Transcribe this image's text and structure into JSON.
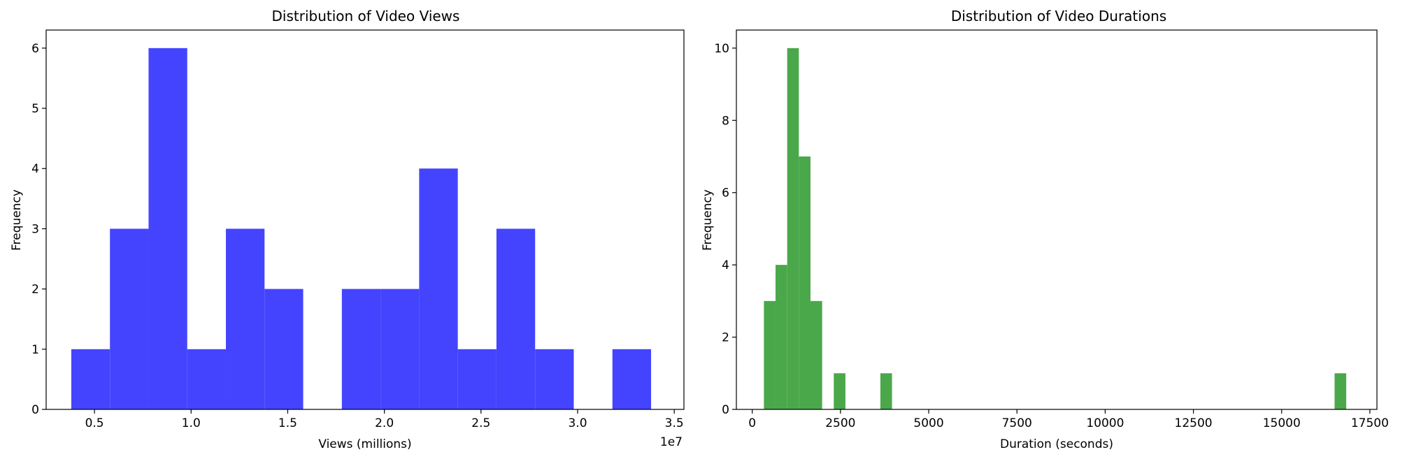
{
  "chart_data": [
    {
      "type": "bar",
      "title": "Distribution of Video Views",
      "xlabel": "Views (millions)",
      "ylabel": "Frequency",
      "x_offset_label": "1e7",
      "color": "#4444ff",
      "xlim": [
        2500000,
        35500000
      ],
      "ylim": [
        0,
        6.3
      ],
      "x_ticks": [
        {
          "value": 5000000,
          "label": "0.5"
        },
        {
          "value": 10000000,
          "label": "1.0"
        },
        {
          "value": 15000000,
          "label": "1.5"
        },
        {
          "value": 20000000,
          "label": "2.0"
        },
        {
          "value": 25000000,
          "label": "2.5"
        },
        {
          "value": 30000000,
          "label": "3.0"
        },
        {
          "value": 35000000,
          "label": "3.5"
        }
      ],
      "y_ticks": [
        {
          "value": 0,
          "label": "0"
        },
        {
          "value": 1,
          "label": "1"
        },
        {
          "value": 2,
          "label": "2"
        },
        {
          "value": 3,
          "label": "3"
        },
        {
          "value": 4,
          "label": "4"
        },
        {
          "value": 5,
          "label": "5"
        },
        {
          "value": 6,
          "label": "6"
        }
      ],
      "bins": [
        3800000,
        5800000,
        7800000,
        9800000,
        11800000,
        13800000,
        15800000,
        17800000,
        19800000,
        21800000,
        23800000,
        25800000,
        27800000,
        29800000,
        31800000,
        33800000
      ],
      "counts": [
        1,
        3,
        6,
        1,
        3,
        2,
        0,
        2,
        2,
        4,
        1,
        3,
        1,
        0,
        1
      ],
      "grid": false
    },
    {
      "type": "bar",
      "title": "Distribution of Video Durations",
      "xlabel": "Duration (seconds)",
      "ylabel": "Frequency",
      "color": "#4aa84a",
      "xlim": [
        -450,
        17700
      ],
      "ylim": [
        0,
        10.5
      ],
      "x_ticks": [
        {
          "value": 0,
          "label": "0"
        },
        {
          "value": 2500,
          "label": "2500"
        },
        {
          "value": 5000,
          "label": "5000"
        },
        {
          "value": 7500,
          "label": "7500"
        },
        {
          "value": 10000,
          "label": "10000"
        },
        {
          "value": 12500,
          "label": "12500"
        },
        {
          "value": 15000,
          "label": "15000"
        },
        {
          "value": 17500,
          "label": "17500"
        }
      ],
      "y_ticks": [
        {
          "value": 0,
          "label": "0"
        },
        {
          "value": 2,
          "label": "2"
        },
        {
          "value": 4,
          "label": "4"
        },
        {
          "value": 6,
          "label": "6"
        },
        {
          "value": 8,
          "label": "8"
        },
        {
          "value": 10,
          "label": "10"
        }
      ],
      "bin_start": 330,
      "bin_width": 330,
      "counts": [
        3,
        4,
        10,
        7,
        3,
        0,
        1,
        0,
        0,
        0,
        1,
        0,
        0,
        0,
        0,
        0,
        0,
        0,
        0,
        0,
        0,
        0,
        0,
        0,
        0,
        0,
        0,
        0,
        0,
        0,
        0,
        0,
        0,
        0,
        0,
        0,
        0,
        0,
        0,
        0,
        0,
        0,
        0,
        0,
        0,
        0,
        0,
        0,
        0,
        1
      ],
      "grid": false
    }
  ]
}
